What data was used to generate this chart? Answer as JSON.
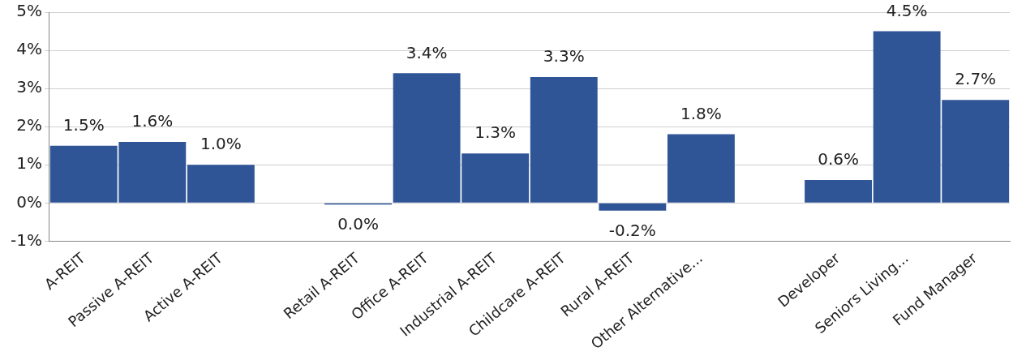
{
  "chart_data": {
    "type": "bar",
    "categories": [
      "A-REIT",
      "Passive A-REIT",
      "Active A-REIT",
      null,
      "Retail A-REIT",
      "Office A-REIT",
      "Industrial A-REIT",
      "Childcare A-REIT",
      "Rural A-REIT",
      "Other Alternative...",
      null,
      "Developer",
      "Seniors Living...",
      "Fund Manager"
    ],
    "values": [
      1.5,
      1.6,
      1.0,
      null,
      -0.04,
      3.4,
      1.3,
      3.3,
      -0.2,
      1.8,
      null,
      0.6,
      4.5,
      2.7
    ],
    "value_labels": [
      "1.5%",
      "1.6%",
      "1.0%",
      null,
      "0.0%",
      "3.4%",
      "1.3%",
      "3.3%",
      "-0.2%",
      "1.8%",
      null,
      "0.6%",
      "4.5%",
      "2.7%"
    ],
    "color": "#2f5597",
    "ylim": [
      -1,
      5
    ],
    "yticks": [
      {
        "value": -1,
        "label": "-1%"
      },
      {
        "value": 0,
        "label": "0%"
      },
      {
        "value": 1,
        "label": "1%"
      },
      {
        "value": 2,
        "label": "2%"
      },
      {
        "value": 3,
        "label": "3%"
      },
      {
        "value": 4,
        "label": "4%"
      },
      {
        "value": 5,
        "label": "5%"
      }
    ],
    "grid": "y",
    "legend": false
  }
}
